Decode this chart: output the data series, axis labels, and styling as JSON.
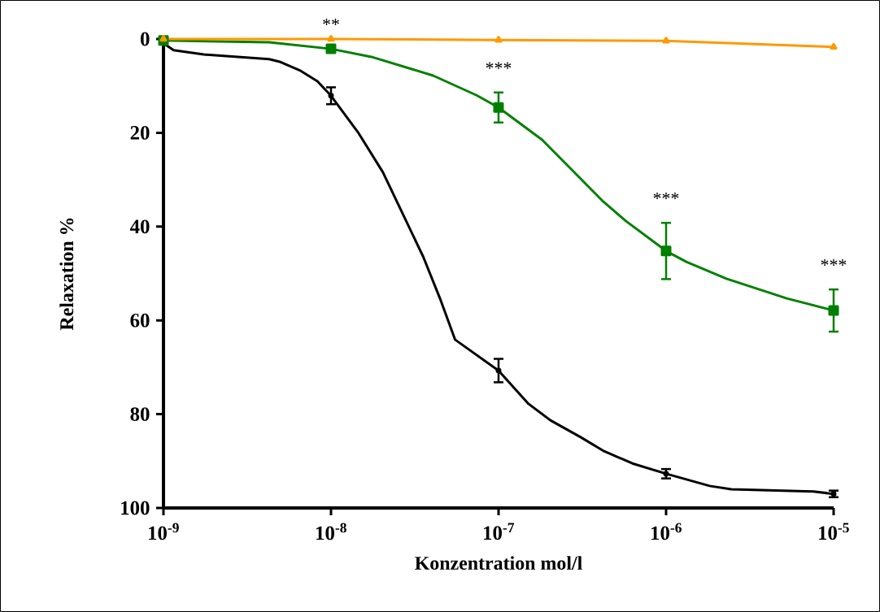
{
  "chart_data": {
    "type": "line",
    "xlabel": "Konzentration mol/l",
    "ylabel": "Relaxation %",
    "log": "x",
    "xlim": [
      1e-09,
      1e-05
    ],
    "ylim": [
      100,
      0
    ],
    "xticks": [
      {
        "value": 1e-09,
        "label": "10$^{-9}$"
      },
      {
        "value": 1e-08,
        "label": "10$^{-8}$"
      },
      {
        "value": 1e-07,
        "label": "10$^{-7}$"
      },
      {
        "value": 1e-06,
        "label": "10$^{-6}$"
      },
      {
        "value": 1e-05,
        "label": "10$^{-5}$"
      }
    ],
    "yticks": [
      0,
      20,
      40,
      60,
      80,
      100
    ],
    "grid": false,
    "series": [
      {
        "color": "#000000",
        "marker": "none",
        "x": [
          1e-09,
          1.15e-09,
          1.74e-09,
          4.27e-09,
          5e-09,
          6.6e-09,
          8.3e-09,
          1e-08,
          1.45e-08,
          2.04e-08,
          3.55e-08,
          4.47e-08,
          5.5e-08,
          1e-07,
          1.51e-07,
          2.04e-07,
          3.09e-07,
          4.27e-07,
          6.3e-07,
          1e-06,
          1.82e-06,
          2.45e-06,
          7.6e-06,
          1e-05
        ],
        "values": [
          0.9,
          2.4,
          3.3,
          4.3,
          4.9,
          6.8,
          9.0,
          12.1,
          19.9,
          28.4,
          46.4,
          55.3,
          64.1,
          70.7,
          77.8,
          81.3,
          84.9,
          87.9,
          90.5,
          92.7,
          95.3,
          96.0,
          96.5,
          97.0
        ]
      },
      {
        "type": "scatter",
        "color": "#000000",
        "marker": "none",
        "x": [
          1e-08,
          1e-07,
          1e-06,
          1e-05
        ],
        "values": [
          12.1,
          70.7,
          92.7,
          97.0
        ],
        "errors": [
          1.8,
          2.5,
          1.0,
          0.7
        ]
      },
      {
        "color": "#008000",
        "marker": "none",
        "x": [
          1e-09,
          4.27e-09,
          1e-08,
          1.74e-08,
          4.07e-08,
          7.4e-08,
          1e-07,
          1.82e-07,
          4.17e-07,
          5.75e-07,
          1e-06,
          1.32e-06,
          2.29e-06,
          5.25e-06,
          1e-05
        ],
        "values": [
          0.3,
          0.7,
          2.1,
          3.8,
          7.8,
          12.0,
          14.6,
          21.5,
          34.5,
          38.8,
          45.2,
          47.5,
          51.1,
          55.3,
          57.9
        ]
      },
      {
        "type": "scatter",
        "color": "#008000",
        "marker": "square",
        "x": [
          1e-09,
          1e-08,
          1e-07,
          1e-06,
          1e-05
        ],
        "values": [
          0.3,
          2.1,
          14.6,
          45.2,
          57.9
        ],
        "errors": [
          null,
          null,
          3.2,
          6.0,
          4.5
        ]
      },
      {
        "color": "#ff9900",
        "marker": "triangle",
        "x": [
          1e-09,
          1e-08,
          1e-07,
          1e-06,
          1e-05
        ],
        "values": [
          0.0,
          0.0,
          0.2,
          0.4,
          1.7
        ]
      }
    ],
    "annotations": [
      {
        "text": "**",
        "x": 1e-08,
        "y": 2.1
      },
      {
        "text": "***",
        "x": 1e-07,
        "y": 11.4
      },
      {
        "text": "***",
        "x": 1e-06,
        "y": 39.2
      },
      {
        "text": "***",
        "x": 1e-05,
        "y": 53.4
      }
    ]
  }
}
